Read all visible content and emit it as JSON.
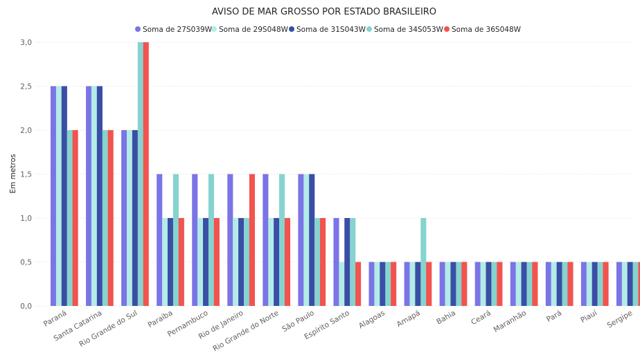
{
  "chart_data": {
    "type": "bar",
    "title": "AVISO DE MAR GROSSO POR ESTADO BRASILEIRO",
    "ylabel": "Em metros",
    "xlabel": "",
    "ylim": [
      0,
      3
    ],
    "yticks": [
      "0,0",
      "0,5",
      "1,0",
      "1,5",
      "2,0",
      "2,5",
      "3,0"
    ],
    "ytick_values": [
      0,
      0.5,
      1,
      1.5,
      2,
      2.5,
      3
    ],
    "grid": true,
    "legend_position": "top-center",
    "categories": [
      "Paraná",
      "Santa Catarina",
      "Rio Grande do Sul",
      "Paraíba",
      "Pernambuco",
      "Rio de Janeiro",
      "Rio Grande do Norte",
      "São Paulo",
      "Espírito Santo",
      "Alagoas",
      "Amapá",
      "Bahia",
      "Ceará",
      "Maranhão",
      "Pará",
      "Piauí",
      "Sergipe"
    ],
    "series": [
      {
        "name": "Soma de 27S039W",
        "color": "#7b74e6",
        "values": [
          2.5,
          2.5,
          2.0,
          1.5,
          1.5,
          1.5,
          1.5,
          1.5,
          1.0,
          0.5,
          0.5,
          0.5,
          0.5,
          0.5,
          0.5,
          0.5,
          0.5
        ]
      },
      {
        "name": "Soma de 29S048W",
        "color": "#b3ece6",
        "values": [
          2.5,
          2.5,
          2.0,
          1.0,
          1.0,
          1.0,
          1.0,
          1.5,
          0.5,
          0.5,
          0.5,
          0.5,
          0.5,
          0.5,
          0.5,
          0.5,
          0.5
        ]
      },
      {
        "name": "Soma de 31S043W",
        "color": "#3a4ea6",
        "values": [
          2.5,
          2.5,
          2.0,
          1.0,
          1.0,
          1.0,
          1.0,
          1.5,
          1.0,
          0.5,
          0.5,
          0.5,
          0.5,
          0.5,
          0.5,
          0.5,
          0.5
        ]
      },
      {
        "name": "Soma de 34S053W",
        "color": "#86d3cf",
        "values": [
          2.0,
          2.0,
          3.0,
          1.5,
          1.5,
          1.0,
          1.5,
          1.0,
          1.0,
          0.5,
          1.0,
          0.5,
          0.5,
          0.5,
          0.5,
          0.5,
          0.5
        ]
      },
      {
        "name": "Soma de 36S048W",
        "color": "#f2534f",
        "values": [
          2.0,
          2.0,
          3.0,
          1.0,
          1.0,
          1.5,
          1.0,
          1.0,
          0.5,
          0.5,
          0.5,
          0.5,
          0.5,
          0.5,
          0.5,
          0.5,
          0.5
        ]
      }
    ]
  }
}
